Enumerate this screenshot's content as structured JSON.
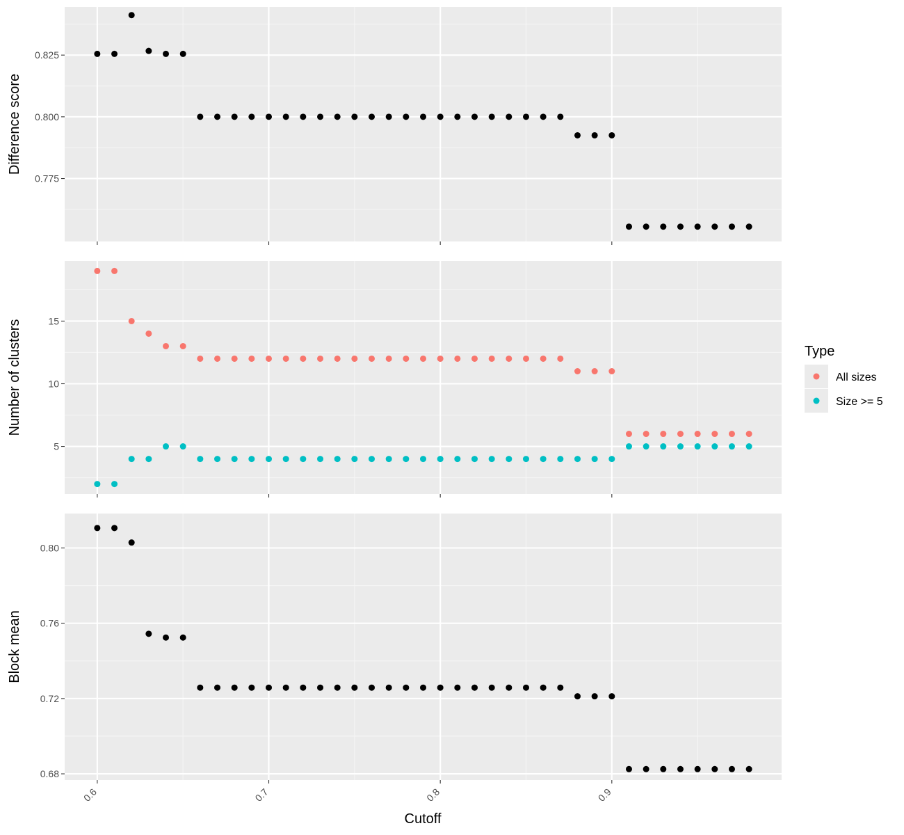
{
  "chart_data": [
    {
      "type": "scatter",
      "panel": "top",
      "ylabel": "Difference score",
      "xlim": [
        0.581,
        0.999
      ],
      "ylim": [
        0.7495,
        0.8445
      ],
      "yticks": [
        0.775,
        0.8,
        0.825
      ],
      "ytick_labels": [
        "0.775",
        "0.800",
        "0.825"
      ],
      "grid": true,
      "series": [
        {
          "color": "#000000",
          "x": [
            0.6,
            0.61,
            0.62,
            0.63,
            0.64,
            0.65,
            0.66,
            0.67,
            0.68,
            0.69,
            0.7,
            0.71,
            0.72,
            0.73,
            0.74,
            0.75,
            0.76,
            0.77,
            0.78,
            0.79,
            0.8,
            0.81,
            0.82,
            0.83,
            0.84,
            0.85,
            0.86,
            0.87,
            0.88,
            0.89,
            0.9,
            0.91,
            0.92,
            0.93,
            0.94,
            0.95,
            0.96,
            0.97,
            0.98
          ],
          "y": [
            0.8255,
            0.8255,
            0.8412,
            0.8267,
            0.8255,
            0.8255,
            0.8,
            0.8,
            0.8,
            0.8,
            0.8,
            0.8,
            0.8,
            0.8,
            0.8,
            0.8,
            0.8,
            0.8,
            0.8,
            0.8,
            0.8,
            0.8,
            0.8,
            0.8,
            0.8,
            0.8,
            0.8,
            0.8,
            0.7925,
            0.7925,
            0.7925,
            0.7555,
            0.7555,
            0.7555,
            0.7555,
            0.7555,
            0.7555,
            0.7555,
            0.7555
          ]
        }
      ]
    },
    {
      "type": "scatter",
      "panel": "middle",
      "ylabel": "Number of clusters",
      "xlim": [
        0.581,
        0.999
      ],
      "ylim": [
        1.2,
        19.8
      ],
      "yticks": [
        5,
        10,
        15
      ],
      "ytick_labels": [
        "5",
        "10",
        "15"
      ],
      "grid": true,
      "legend": {
        "title": "Type",
        "position": "right"
      },
      "series": [
        {
          "name": "All sizes",
          "color": "#F8766D",
          "x": [
            0.6,
            0.61,
            0.62,
            0.63,
            0.64,
            0.65,
            0.66,
            0.67,
            0.68,
            0.69,
            0.7,
            0.71,
            0.72,
            0.73,
            0.74,
            0.75,
            0.76,
            0.77,
            0.78,
            0.79,
            0.8,
            0.81,
            0.82,
            0.83,
            0.84,
            0.85,
            0.86,
            0.87,
            0.88,
            0.89,
            0.9,
            0.91,
            0.92,
            0.93,
            0.94,
            0.95,
            0.96,
            0.97,
            0.98
          ],
          "y": [
            19,
            19,
            15,
            14,
            13,
            13,
            12,
            12,
            12,
            12,
            12,
            12,
            12,
            12,
            12,
            12,
            12,
            12,
            12,
            12,
            12,
            12,
            12,
            12,
            12,
            12,
            12,
            12,
            11,
            11,
            11,
            6,
            6,
            6,
            6,
            6,
            6,
            6,
            6
          ]
        },
        {
          "name": "Size >= 5",
          "color": "#00BFC4",
          "x": [
            0.6,
            0.61,
            0.62,
            0.63,
            0.64,
            0.65,
            0.66,
            0.67,
            0.68,
            0.69,
            0.7,
            0.71,
            0.72,
            0.73,
            0.74,
            0.75,
            0.76,
            0.77,
            0.78,
            0.79,
            0.8,
            0.81,
            0.82,
            0.83,
            0.84,
            0.85,
            0.86,
            0.87,
            0.88,
            0.89,
            0.9,
            0.91,
            0.92,
            0.93,
            0.94,
            0.95,
            0.96,
            0.97,
            0.98
          ],
          "y": [
            2,
            2,
            4,
            4,
            5,
            5,
            4,
            4,
            4,
            4,
            4,
            4,
            4,
            4,
            4,
            4,
            4,
            4,
            4,
            4,
            4,
            4,
            4,
            4,
            4,
            4,
            4,
            4,
            4,
            4,
            4,
            5,
            5,
            5,
            5,
            5,
            5,
            5,
            5
          ]
        }
      ]
    },
    {
      "type": "scatter",
      "panel": "bottom",
      "ylabel": "Block mean",
      "xlabel": "Cutoff",
      "xlim": [
        0.581,
        0.999
      ],
      "xticks": [
        0.6,
        0.7,
        0.8,
        0.9
      ],
      "xtick_labels": [
        "0.6",
        "0.7",
        "0.8",
        "0.9"
      ],
      "ylim": [
        0.6767,
        0.8183
      ],
      "yticks": [
        0.68,
        0.72,
        0.76,
        0.8
      ],
      "ytick_labels": [
        "0.68",
        "0.72",
        "0.76",
        "0.80"
      ],
      "grid": true,
      "series": [
        {
          "color": "#000000",
          "x": [
            0.6,
            0.61,
            0.62,
            0.63,
            0.64,
            0.65,
            0.66,
            0.67,
            0.68,
            0.69,
            0.7,
            0.71,
            0.72,
            0.73,
            0.74,
            0.75,
            0.76,
            0.77,
            0.78,
            0.79,
            0.8,
            0.81,
            0.82,
            0.83,
            0.84,
            0.85,
            0.86,
            0.87,
            0.88,
            0.89,
            0.9,
            0.91,
            0.92,
            0.93,
            0.94,
            0.95,
            0.96,
            0.97,
            0.98
          ],
          "y": [
            0.8106,
            0.8106,
            0.8029,
            0.7544,
            0.7524,
            0.7524,
            0.7258,
            0.7258,
            0.7258,
            0.7258,
            0.7258,
            0.7258,
            0.7258,
            0.7258,
            0.7258,
            0.7258,
            0.7258,
            0.7258,
            0.7258,
            0.7258,
            0.7258,
            0.7258,
            0.7258,
            0.7258,
            0.7258,
            0.7258,
            0.7258,
            0.7258,
            0.7212,
            0.7212,
            0.7212,
            0.6825,
            0.6825,
            0.6825,
            0.6825,
            0.6825,
            0.6825,
            0.6825,
            0.6825
          ]
        }
      ]
    }
  ]
}
